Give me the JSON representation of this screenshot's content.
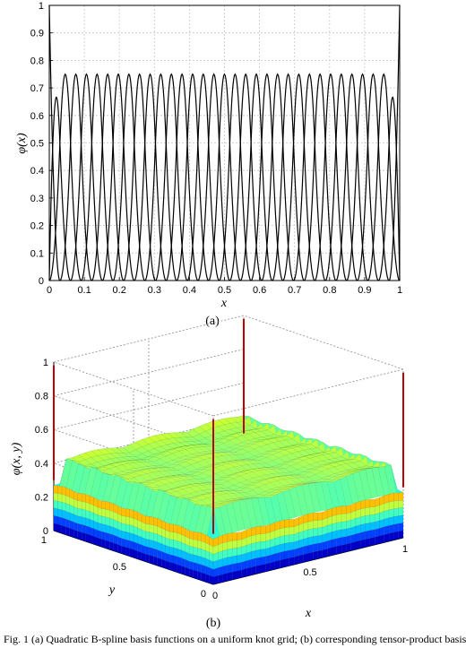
{
  "chart_data": [
    {
      "type": "line",
      "panel_label": "(a)",
      "xlabel": "x",
      "ylabel": "φ(x)",
      "xlim": [
        0,
        1
      ],
      "ylim": [
        0,
        1
      ],
      "x_ticks": [
        "0",
        "0.1",
        "0.2",
        "0.3",
        "0.4",
        "0.5",
        "0.6",
        "0.7",
        "0.8",
        "0.9",
        "1"
      ],
      "y_ticks": [
        "0",
        "0.1",
        "0.2",
        "0.3",
        "0.4",
        "0.5",
        "0.6",
        "0.7",
        "0.8",
        "0.9",
        "1"
      ],
      "grid": true,
      "basis": {
        "knot_spacing": 0.0303,
        "count": 35,
        "boundary_peak": 1.0,
        "second_peak": 0.667,
        "interior_peak": 0.75,
        "line_color": "#000000"
      }
    },
    {
      "type": "surface",
      "panel_label": "(b)",
      "xlabel": "x",
      "ylabel": "y",
      "zlabel": "φ(x, y)",
      "x_ticks": [
        "0",
        "0.5",
        "1"
      ],
      "y_ticks": [
        "0",
        "0.5",
        "1"
      ],
      "z_ticks": [
        "0",
        "0.2",
        "0.4",
        "0.6",
        "0.8",
        "1"
      ],
      "zlim": [
        0,
        1
      ],
      "grid": true,
      "colormap": [
        "#00008f",
        "#0000ff",
        "#0080ff",
        "#00ffff",
        "#80ff80",
        "#ffff00",
        "#ff8000",
        "#ff0000",
        "#800000"
      ]
    }
  ],
  "caption": "Fig. 1 (a) Quadratic B-spline basis functions on a uniform knot grid; (b) corresponding tensor-product basis"
}
